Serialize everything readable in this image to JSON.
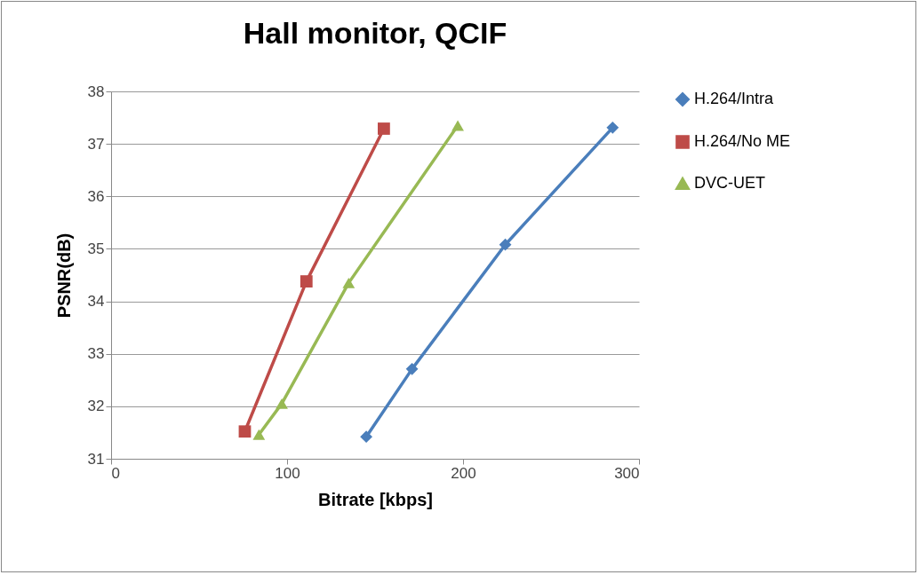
{
  "chart_data": {
    "type": "line",
    "title": "Hall monitor, QCIF",
    "xlabel": "Bitrate [kbps]",
    "ylabel": "PSNR(dB)",
    "xlim": [
      0,
      300
    ],
    "xticks": [
      0,
      100,
      200,
      300
    ],
    "ylim": [
      31,
      38
    ],
    "yticks": [
      31,
      32,
      33,
      34,
      35,
      36,
      37,
      38
    ],
    "grid": "y",
    "legend": "right",
    "series": [
      {
        "name": "H.264/Intra",
        "color": "#4a7ebb",
        "marker": "diamond",
        "x": [
          145,
          171,
          224,
          285
        ],
        "values": [
          31.42,
          32.71,
          35.08,
          37.31
        ]
      },
      {
        "name": "H.264/No ME",
        "color": "#be4b48",
        "marker": "square",
        "x": [
          76,
          111,
          155
        ],
        "values": [
          31.52,
          34.38,
          37.29
        ]
      },
      {
        "name": "DVC-UET",
        "color": "#98b954",
        "marker": "triangle",
        "x": [
          84,
          97,
          135,
          197
        ],
        "values": [
          31.46,
          32.05,
          34.35,
          37.35
        ]
      }
    ]
  }
}
